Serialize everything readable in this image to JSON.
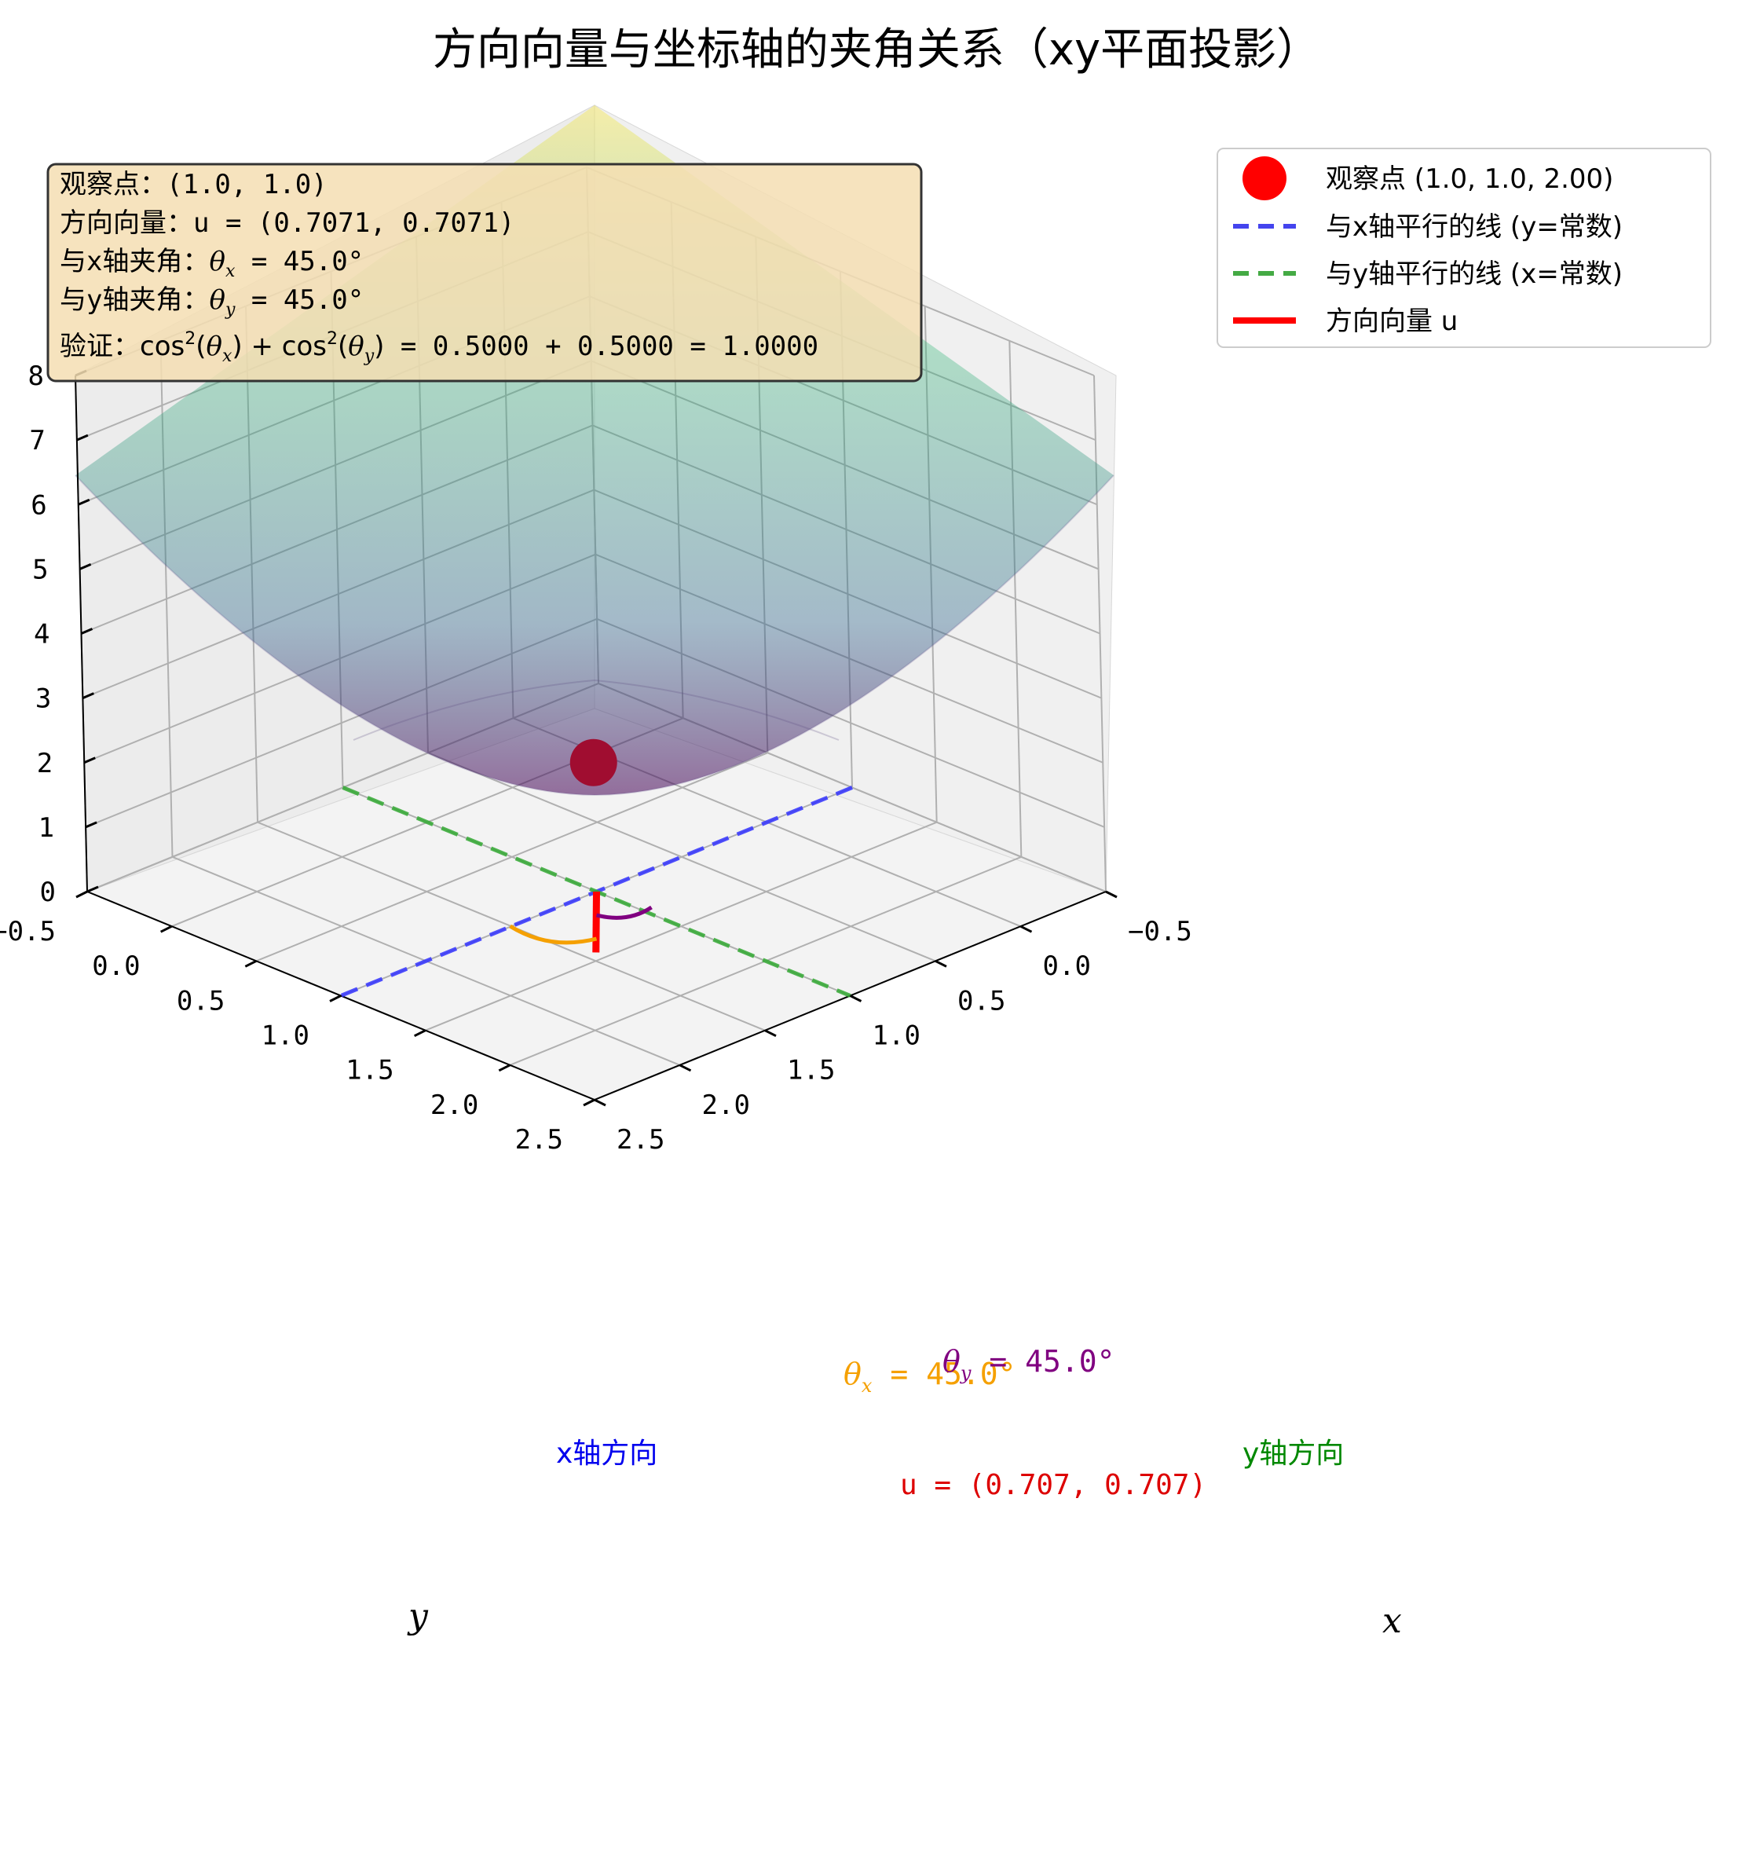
{
  "chart_data": {
    "type": "surface",
    "title": "方向向量与坐标轴的夹角关系（xy平面投影）",
    "function_shown": "z = x^2 + y^2",
    "xlabel": "x",
    "ylabel": "y",
    "zlabel": "",
    "xlim": [
      -0.5,
      2.5
    ],
    "ylim": [
      -0.5,
      2.5
    ],
    "zlim": [
      0,
      8
    ],
    "x_ticks": [
      "−0.5",
      "0.0",
      "0.5",
      "1.0",
      "1.5",
      "2.0",
      "2.5"
    ],
    "y_ticks": [
      "−0.5",
      "0.0",
      "0.5",
      "1.0",
      "1.5",
      "2.0",
      "2.5"
    ],
    "z_ticks": [
      "0",
      "1",
      "2",
      "3",
      "4",
      "5",
      "6",
      "7",
      "8"
    ],
    "colormap": "viridis",
    "grid": true,
    "point": {
      "x": 1.0,
      "y": 1.0,
      "z": 2.0,
      "color": "#ff0000"
    },
    "line_y_const": {
      "y": 1.0,
      "x_from": -0.5,
      "x_to": 2.5,
      "color": "#3333ff"
    },
    "line_x_const": {
      "x": 1.0,
      "y_from": -0.5,
      "y_to": 2.5,
      "color": "#33aa33"
    },
    "direction_vector": {
      "u": [
        0.7071,
        0.7071
      ],
      "color": "#ff0000"
    },
    "angle_x_deg": 45.0,
    "angle_y_deg": 45.0,
    "info_box": {
      "line1": "观察点：(1.0, 1.0)",
      "line2": "方向向量：u = (0.7071, 0.7071)",
      "line3_prefix": "与x轴夹角：",
      "line3_value": " = 45.0°",
      "line4_prefix": "与y轴夹角：",
      "line4_value": " = 45.0°",
      "line5_prefix": "验证：",
      "line5_value": " = 0.5000 + 0.5000 = 1.0000"
    },
    "legend": {
      "placement": "top-right",
      "items": [
        {
          "label": "观察点 (1.0, 1.0, 2.00)",
          "color": "#ff0000"
        },
        {
          "label": "与x轴平行的线 (y=常数)",
          "color": "#4444ee"
        },
        {
          "label": "与y轴平行的线 (x=常数)",
          "color": "#44aa44"
        },
        {
          "label": "方向向量 u",
          "color": "#ff0000"
        }
      ]
    },
    "annotations": {
      "x_dir": "x轴方向",
      "y_dir": "y轴方向",
      "u_label": "u = (0.707, 0.707)",
      "theta_x_value": " = 45.0°",
      "theta_y_value": " = 45.0°"
    }
  }
}
